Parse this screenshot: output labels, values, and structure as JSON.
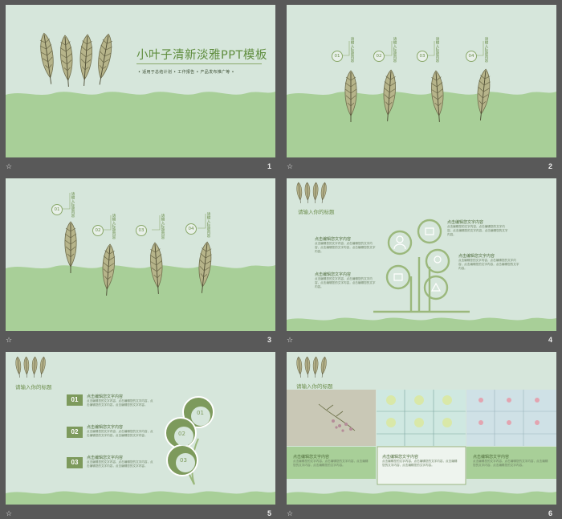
{
  "footer_icon": "☆",
  "slides": [
    {
      "number": "1",
      "title": "小叶子清新淡雅PPT模板",
      "subtitle": "•   适用于总结计划   •   工作报告   •   产品发布推广等   •"
    },
    {
      "number": "2",
      "items": [
        {
          "num": "01",
          "text": "请输入标题内容"
        },
        {
          "num": "02",
          "text": "请输入标题内容"
        },
        {
          "num": "03",
          "text": "请输入标题内容"
        },
        {
          "num": "04",
          "text": "请输入标题内容"
        }
      ]
    },
    {
      "number": "3",
      "items": [
        {
          "num": "01",
          "text": "请输入标题内容"
        },
        {
          "num": "02",
          "text": "请输入标题内容"
        },
        {
          "num": "03",
          "text": "请输入标题内容"
        },
        {
          "num": "04",
          "text": "请输入标题内容"
        }
      ]
    },
    {
      "number": "4",
      "section_title": "请输入你的标题",
      "blocks": [
        {
          "heading": "点击编辑您文字内容",
          "body": "点击编辑您的文字内容，点击编辑您的文字内容，点击编辑您的文字内容，点击编辑您的文字内容。"
        },
        {
          "heading": "点击编辑您文字内容",
          "body": "点击编辑您的文字内容，点击编辑您的文字内容，点击编辑您的文字内容，点击编辑您的文字内容。"
        },
        {
          "heading": "点击编辑您文字内容",
          "body": "点击编辑您的文字内容，点击编辑您的文字内容，点击编辑您的文字内容，点击编辑您的文字内容。"
        },
        {
          "heading": "点击编辑您文字内容",
          "body": "点击编辑您的文字内容，点击编辑您的文字内容，点击编辑您的文字内容，点击编辑您的文字内容。"
        }
      ]
    },
    {
      "number": "5",
      "section_title": "请输入你的标题",
      "items": [
        {
          "num": "01",
          "heading": "点击编辑您文字内容",
          "body": "点击编辑您的文字内容，点击编辑您的文字内容，点击编辑您的文字内容，点击编辑您的文字内容。"
        },
        {
          "num": "02",
          "heading": "点击编辑您文字内容",
          "body": "点击编辑您的文字内容，点击编辑您的文字内容，点击编辑您的文字内容，点击编辑您的文字内容。"
        },
        {
          "num": "03",
          "heading": "点击编辑您文字内容",
          "body": "点击编辑您的文字内容，点击编辑您的文字内容，点击编辑您的文字内容，点击编辑您的文字内容。"
        }
      ],
      "circles": [
        "01",
        "02",
        "03"
      ]
    },
    {
      "number": "6",
      "section_title": "请输入你的标题",
      "cards": [
        {
          "heading": "点击编辑您文字内容",
          "body": "点击编辑您的文字内容，点击编辑您的文字内容，点击编辑您的文字内容，点击编辑您的文字内容。"
        },
        {
          "heading": "点击编辑您文字内容",
          "body": "点击编辑您的文字内容，点击编辑您的文字内容，点击编辑您的文字内容，点击编辑您的文字内容。"
        },
        {
          "heading": "点击编辑您文字内容",
          "body": "点击编辑您的文字内容，点击编辑您的文字内容，点击编辑您的文字内容，点击编辑您的文字内容。"
        }
      ]
    }
  ],
  "colors": {
    "background": "#595959",
    "slide_light": "#d6e6db",
    "slide_band": "#a8cf98",
    "accent": "#7d9a5c"
  }
}
